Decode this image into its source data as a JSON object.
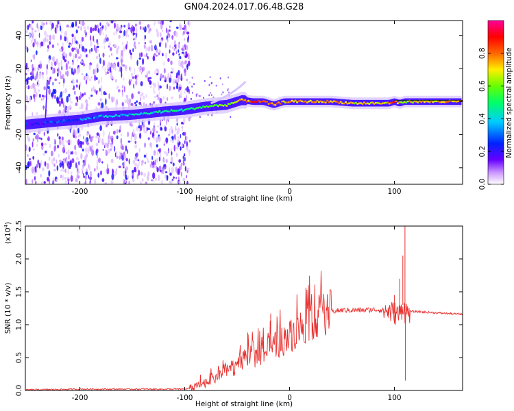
{
  "title": "GN04.2024.017.06.48.G28",
  "colormap_colors": [
    "#ffffff",
    "#9900ff",
    "#3300ff",
    "#0066ff",
    "#00ffff",
    "#00ff33",
    "#ccff00",
    "#ffaa00",
    "#ff0000",
    "#ff00aa"
  ],
  "line_color": "#e8302e",
  "chart_data": [
    {
      "type": "heatmap",
      "xlabel": "Height of straight line (km)",
      "ylabel": "Frequency (Hz)",
      "xlim": [
        -252,
        165
      ],
      "ylim": [
        -50,
        49
      ],
      "xticks": [
        -200,
        -100,
        0,
        100
      ],
      "xtick_labels": [
        "-200",
        "-100",
        "0",
        "100"
      ],
      "yticks": [
        -40,
        -20,
        0,
        20,
        40
      ],
      "ytick_labels": [
        "-40",
        "-20",
        "0",
        "20",
        "40"
      ],
      "colorbar": {
        "label": "Normalized spectral amplitude",
        "range": [
          0,
          1
        ],
        "ticks": [
          0,
          0.2,
          0.4,
          0.6,
          0.8
        ],
        "tick_labels": [
          "0.0",
          "0.2",
          "0.4",
          "0.6",
          "0.8"
        ]
      },
      "ridge": {
        "x": [
          -252,
          -220,
          -200,
          -180,
          -150,
          -120,
          -100,
          -80,
          -60,
          -45,
          -35,
          -25,
          -15,
          -5,
          0,
          20,
          40,
          60,
          80,
          95,
          100,
          105,
          110,
          130,
          165
        ],
        "frequency": [
          -14,
          -12,
          -11,
          -9,
          -8,
          -6,
          -5,
          -3,
          -2,
          1,
          0,
          0,
          -2,
          0,
          0,
          0,
          0,
          -1,
          -1,
          -1,
          0,
          -1,
          0,
          0,
          0
        ],
        "amplitude": [
          0.2,
          0.25,
          0.3,
          0.35,
          0.4,
          0.45,
          0.45,
          0.55,
          0.6,
          0.7,
          0.85,
          0.8,
          0.8,
          0.7,
          0.75,
          0.75,
          0.75,
          0.7,
          0.65,
          0.75,
          0.85,
          0.7,
          0.65,
          0.7,
          0.8
        ]
      }
    },
    {
      "type": "line",
      "xlabel": "Height of straight line (km)",
      "ylabel": "SNR (10 * v/v)",
      "y_multiplier": "(x10",
      "y_multiplier_exp": "4",
      "y_multiplier_close": ")",
      "xlim": [
        -252,
        165
      ],
      "ylim": [
        0,
        2.5
      ],
      "xticks": [
        -200,
        -100,
        0,
        100
      ],
      "xtick_labels": [
        "-200",
        "-100",
        "0",
        "100"
      ],
      "yticks": [
        0,
        0.5,
        1,
        1.5,
        2,
        2.5
      ],
      "ytick_labels": [
        "0.0",
        "0.5",
        "1.0",
        "1.5",
        "2.0",
        "2.5"
      ],
      "x": [
        -252,
        -200,
        -150,
        -100,
        -90,
        -80,
        -70,
        -60,
        -50,
        -40,
        -30,
        -20,
        -10,
        0,
        10,
        20,
        30,
        40,
        50,
        60,
        70,
        80,
        90,
        95,
        100,
        105,
        108,
        110,
        112,
        115,
        120,
        130,
        140,
        150,
        165
      ],
      "y": [
        0.01,
        0.02,
        0.02,
        0.02,
        0.05,
        0.12,
        0.2,
        0.3,
        0.38,
        0.48,
        0.55,
        0.62,
        0.72,
        0.82,
        0.95,
        1.07,
        1.15,
        1.2,
        1.22,
        1.22,
        1.22,
        1.23,
        1.22,
        1.2,
        1.18,
        1.15,
        1.3,
        1.2,
        1.18,
        1.2,
        1.2,
        1.19,
        1.18,
        1.17,
        1.16
      ],
      "spikes": [
        {
          "x": -18,
          "y": 1.17
        },
        {
          "x": -40,
          "y": 0.88
        },
        {
          "x": -25,
          "y": 0.75
        },
        {
          "x": 100,
          "y": 1.45
        },
        {
          "x": 105,
          "y": 1.7
        },
        {
          "x": 108,
          "y": 2.05
        },
        {
          "x": 110,
          "y": 2.5
        },
        {
          "x": 110.5,
          "y": 0.15
        }
      ]
    }
  ]
}
